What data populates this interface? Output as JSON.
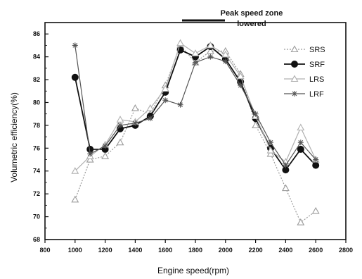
{
  "chart_data": {
    "type": "line",
    "xlabel": "Engine speed(rpm)",
    "ylabel": "Volumetric efficiency(%)",
    "xlim": [
      800,
      2800
    ],
    "ylim": [
      68,
      87
    ],
    "x_ticks": [
      "800",
      "1000",
      "1200",
      "1400",
      "1600",
      "1800",
      "2000",
      "2200",
      "2400",
      "2600",
      "2800"
    ],
    "y_ticks": [
      "68",
      "70",
      "72",
      "74",
      "76",
      "78",
      "80",
      "82",
      "84",
      "86"
    ],
    "x": [
      1000,
      1100,
      1200,
      1300,
      1400,
      1500,
      1600,
      1700,
      1800,
      1900,
      2000,
      2100,
      2200,
      2300,
      2400,
      2500,
      2600
    ],
    "series": [
      {
        "name": "SRS",
        "color": "#9a9a9a",
        "style": "dotted",
        "marker": "triangle-open",
        "values": [
          71.5,
          75.0,
          75.3,
          76.5,
          79.5,
          79.0,
          81.5,
          85.0,
          83.5,
          84.5,
          84.5,
          82.5,
          78.0,
          75.5,
          72.5,
          69.5,
          70.5
        ]
      },
      {
        "name": "SRF",
        "color": "#111111",
        "style": "solid",
        "marker": "circle-filled",
        "values": [
          82.2,
          75.9,
          75.9,
          77.7,
          78.0,
          78.8,
          80.9,
          84.6,
          84.0,
          84.9,
          83.8,
          81.8,
          78.6,
          76.0,
          74.1,
          75.9,
          74.5
        ]
      },
      {
        "name": "LRS",
        "color": "#b0b0b0",
        "style": "solid",
        "marker": "triangle-open",
        "values": [
          74.0,
          75.3,
          76.3,
          78.5,
          78.3,
          79.5,
          81.2,
          85.2,
          84.3,
          85.0,
          84.2,
          82.3,
          78.8,
          75.8,
          74.8,
          77.8,
          75.0
        ]
      },
      {
        "name": "LRF",
        "color": "#555555",
        "style": "solid",
        "marker": "star",
        "values": [
          85.0,
          75.5,
          76.2,
          78.0,
          78.2,
          78.6,
          80.2,
          79.8,
          83.5,
          84.0,
          83.6,
          81.5,
          79.0,
          76.5,
          74.5,
          76.5,
          75.0
        ]
      }
    ],
    "annotation": {
      "line1": "Peak speed zone",
      "line2": "lowered"
    },
    "legend_position": "right"
  }
}
